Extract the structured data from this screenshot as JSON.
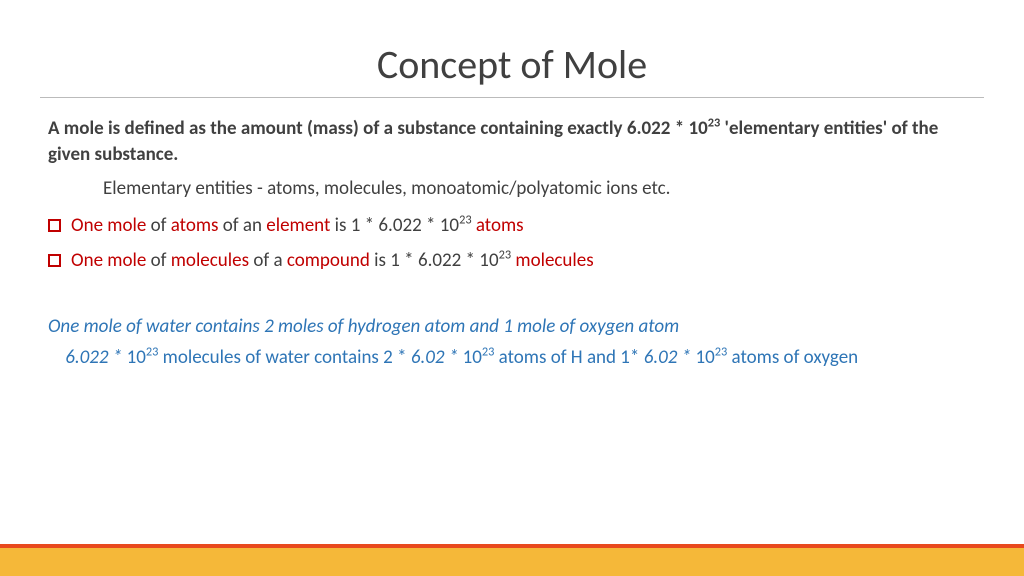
{
  "title": "Concept of Mole",
  "definition_part1": "A mole is defined as the amount (mass) of a substance containing  exactly 6.022 * 10",
  "definition_exp": "23",
  "definition_part2": " 'elementary entities' of the given substance.",
  "sub_definition": "Elementary entities - atoms, molecules, monoatomic/polyatomic ions etc.",
  "bullets": [
    {
      "r1": "One mole",
      "g1": " of ",
      "r2": "atoms",
      "g2": " of an ",
      "r3": "element",
      "g3": "  is 1 * 6.022 * 10",
      "exp": "23",
      "sp": "  ",
      "r4": "atoms"
    },
    {
      "r1": "One mole",
      "g1": " of ",
      "r2": "molecules",
      "g2": " of a ",
      "r3": "compound",
      "g3": "  is 1 * 6.022 * 10",
      "exp": "23",
      "sp": "  ",
      "r4": "molecules"
    }
  ],
  "blue1": "One mole of water contains 2 moles of hydrogen atom and 1 mole of oxygen atom",
  "blue2": {
    "indent": "    ",
    "p1": "6.022 * ",
    "n1": "10",
    "e1": "23",
    "p2": " molecules of water contains 2 *  ",
    "p3": "6.02 * ",
    "n2": "10",
    "e2": "23",
    "p4": " atoms of H and 1* ",
    "p5": "6.02 * ",
    "n3": "10",
    "e3": "23",
    "p6": "  atoms of oxygen"
  },
  "colors": {
    "red": "#c00000",
    "blue": "#2e75b6",
    "text": "#404040",
    "footer": "#f5b839",
    "accent": "#e8491d",
    "rule": "#bbbbbb"
  }
}
